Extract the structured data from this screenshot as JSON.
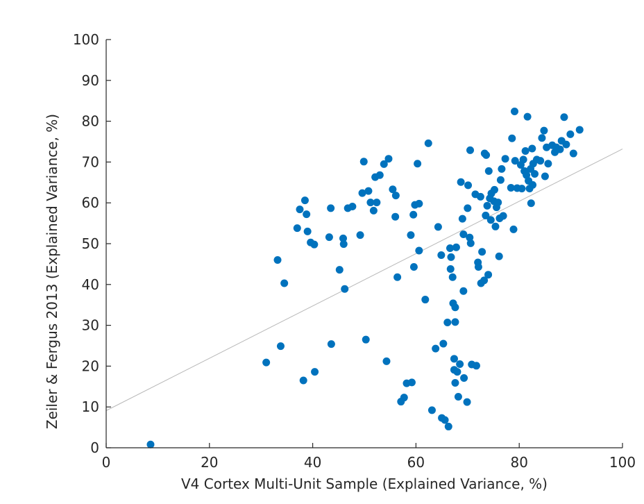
{
  "chart_data": {
    "type": "scatter",
    "title": "",
    "xlabel": "V4 Cortex Multi-Unit Sample (Explained Variance, %)",
    "ylabel": "Zeiler & Fergus 2013 (Explained Variance, %)",
    "xlim": [
      0,
      100
    ],
    "ylim": [
      0,
      100
    ],
    "xticks": [
      0,
      20,
      40,
      60,
      80,
      100
    ],
    "yticks": [
      0,
      10,
      20,
      30,
      40,
      50,
      60,
      70,
      80,
      90,
      100
    ],
    "grid": false,
    "legend": "none",
    "colors": {
      "points": "#0072BD",
      "fit_line": "#b8b8b8",
      "axes": "#262626"
    },
    "fit_line": {
      "x": [
        0,
        100
      ],
      "y": [
        9.1,
        73.2
      ]
    },
    "points": [
      [
        8.6,
        0.8
      ],
      [
        31,
        20.9
      ],
      [
        33.2,
        46
      ],
      [
        33.8,
        24.9
      ],
      [
        34.5,
        40.3
      ],
      [
        37,
        53.8
      ],
      [
        37.5,
        58.4
      ],
      [
        38.2,
        16.5
      ],
      [
        38.5,
        60.6
      ],
      [
        38.8,
        57.2
      ],
      [
        39,
        53
      ],
      [
        39.6,
        50.3
      ],
      [
        40.3,
        49.8
      ],
      [
        40.4,
        18.6
      ],
      [
        43.2,
        51.6
      ],
      [
        43.5,
        58.7
      ],
      [
        43.6,
        25.4
      ],
      [
        45.2,
        43.6
      ],
      [
        45.9,
        51.3
      ],
      [
        46,
        49.9
      ],
      [
        46.2,
        38.9
      ],
      [
        46.8,
        58.7
      ],
      [
        47.7,
        59.1
      ],
      [
        49.2,
        52.1
      ],
      [
        49.6,
        62.4
      ],
      [
        49.9,
        70.1
      ],
      [
        50.3,
        26.5
      ],
      [
        50.8,
        62.9
      ],
      [
        51.2,
        60.1
      ],
      [
        51.8,
        58.1
      ],
      [
        52.1,
        66.3
      ],
      [
        52.4,
        60.1
      ],
      [
        53,
        66.8
      ],
      [
        53.8,
        69.5
      ],
      [
        54.3,
        21.2
      ],
      [
        54.7,
        70.8
      ],
      [
        55.5,
        63.3
      ],
      [
        56,
        56.6
      ],
      [
        56.1,
        61.8
      ],
      [
        56.4,
        41.8
      ],
      [
        57.1,
        11.3
      ],
      [
        57.7,
        12.3
      ],
      [
        58.2,
        15.8
      ],
      [
        59,
        52.1
      ],
      [
        59.2,
        16
      ],
      [
        59.5,
        57.1
      ],
      [
        59.6,
        44.3
      ],
      [
        59.8,
        59.5
      ],
      [
        60.3,
        69.6
      ],
      [
        60.6,
        59.8
      ],
      [
        60.6,
        48.3
      ],
      [
        61.8,
        36.3
      ],
      [
        62.4,
        74.6
      ],
      [
        63.1,
        9.2
      ],
      [
        63.8,
        24.3
      ],
      [
        64.3,
        54.1
      ],
      [
        64.9,
        47.2
      ],
      [
        65,
        7.3
      ],
      [
        65.3,
        25.5
      ],
      [
        65.6,
        6.8
      ],
      [
        66.1,
        30.7
      ],
      [
        66.3,
        5.2
      ],
      [
        66.6,
        48.9
      ],
      [
        66.7,
        43.8
      ],
      [
        66.8,
        46.7
      ],
      [
        67.1,
        41.8
      ],
      [
        67.2,
        35.4
      ],
      [
        67.4,
        21.8
      ],
      [
        67.4,
        19.1
      ],
      [
        67.6,
        15.9
      ],
      [
        67.6,
        34.4
      ],
      [
        67.6,
        30.8
      ],
      [
        67.8,
        49.1
      ],
      [
        68,
        18.6
      ],
      [
        68.2,
        12.5
      ],
      [
        68.5,
        20.5
      ],
      [
        68.7,
        65.1
      ],
      [
        69,
        56.1
      ],
      [
        69.2,
        52.3
      ],
      [
        69.2,
        38.4
      ],
      [
        69.3,
        17.1
      ],
      [
        69.9,
        11.2
      ],
      [
        70,
        58.7
      ],
      [
        70.1,
        64.3
      ],
      [
        70.4,
        51.5
      ],
      [
        70.6,
        50.1
      ],
      [
        70.5,
        72.9
      ],
      [
        70.8,
        20.4
      ],
      [
        71.5,
        62.1
      ],
      [
        71.7,
        20.1
      ],
      [
        72,
        45.4
      ],
      [
        72.1,
        44.3
      ],
      [
        72.5,
        61.5
      ],
      [
        72.6,
        40.3
      ],
      [
        72.8,
        48
      ],
      [
        73.2,
        41
      ],
      [
        73.3,
        72.1
      ],
      [
        73.5,
        56.9
      ],
      [
        73.6,
        71.7
      ],
      [
        73.8,
        59.3
      ],
      [
        74,
        42.4
      ],
      [
        74.1,
        67.8
      ],
      [
        74.3,
        61.1
      ],
      [
        74.5,
        55.8
      ],
      [
        74.6,
        62.3
      ],
      [
        75.1,
        60.4
      ],
      [
        75.2,
        63.2
      ],
      [
        75.4,
        54.2
      ],
      [
        75.6,
        58.9
      ],
      [
        75.9,
        60.1
      ],
      [
        76.1,
        46.9
      ],
      [
        76.2,
        56.2
      ],
      [
        76.4,
        65.6
      ],
      [
        76.6,
        68.3
      ],
      [
        76.9,
        56.8
      ],
      [
        77.3,
        70.8
      ],
      [
        78.4,
        63.7
      ],
      [
        78.6,
        75.8
      ],
      [
        78.9,
        53.5
      ],
      [
        79.1,
        82.4
      ],
      [
        79.2,
        70.3
      ],
      [
        79.6,
        63.6
      ],
      [
        80.3,
        69.3
      ],
      [
        80.5,
        63.5
      ],
      [
        80.8,
        70.6
      ],
      [
        81,
        67.8
      ],
      [
        81.2,
        72.7
      ],
      [
        81.4,
        66.8
      ],
      [
        81.6,
        81.1
      ],
      [
        81.8,
        65.4
      ],
      [
        82,
        63.5
      ],
      [
        82.2,
        68.3
      ],
      [
        82.3,
        59.9
      ],
      [
        82.5,
        73.3
      ],
      [
        82.6,
        64.4
      ],
      [
        82.7,
        69.6
      ],
      [
        83,
        67.1
      ],
      [
        83.4,
        70.6
      ],
      [
        84.1,
        70.3
      ],
      [
        84.4,
        75.9
      ],
      [
        84.8,
        77.7
      ],
      [
        85,
        66.5
      ],
      [
        85.3,
        73.6
      ],
      [
        85.6,
        69.6
      ],
      [
        86.4,
        74.1
      ],
      [
        86.9,
        72.4
      ],
      [
        87.2,
        73.6
      ],
      [
        87.9,
        73.1
      ],
      [
        88.2,
        75.2
      ],
      [
        88.7,
        81
      ],
      [
        89.1,
        74.3
      ],
      [
        89.9,
        76.8
      ],
      [
        90.5,
        72.1
      ],
      [
        91.7,
        77.9
      ]
    ]
  }
}
